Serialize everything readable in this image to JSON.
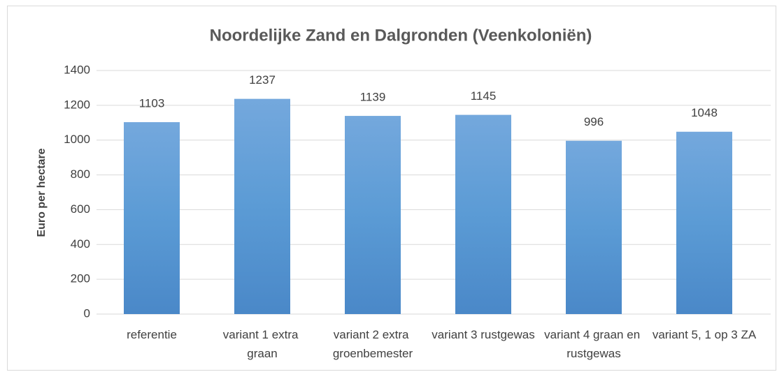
{
  "chart_data": {
    "type": "bar",
    "title": "Noordelijke Zand en Dalgronden (Veenkoloniën)",
    "y_label": "Euro per hectare",
    "categories": [
      "referentie",
      "variant 1 extra graan",
      "variant 2 extra groenbemester",
      "variant 3 rustgewas",
      "variant 4 graan en rustgewas",
      "variant 5, 1 op 3 ZA"
    ],
    "values": [
      1103,
      1237,
      1139,
      1145,
      996,
      1048
    ],
    "color": "#5b9bd5",
    "ylim": [
      0,
      1400
    ],
    "yticks": [
      0,
      200,
      400,
      600,
      800,
      1000,
      1200,
      1400
    ],
    "grid": true
  }
}
